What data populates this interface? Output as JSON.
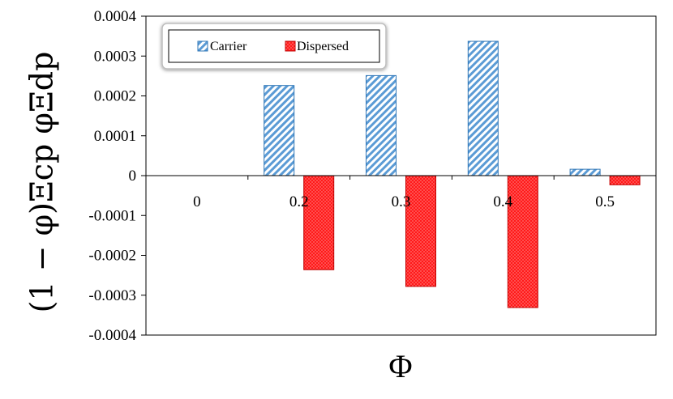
{
  "chart_data": {
    "type": "bar",
    "categories": [
      "0",
      "0.2",
      "0.3",
      "0.4",
      "0.5"
    ],
    "series": [
      {
        "name": "Carrier",
        "values": [
          0,
          0.000226,
          0.000251,
          0.000337,
          1.6e-05
        ],
        "color": "#5b9bd5",
        "pattern": "diagonal-hatch"
      },
      {
        "name": "Dispersed",
        "values": [
          0,
          -0.000236,
          -0.000278,
          -0.000331,
          -2.3e-05
        ],
        "color": "#ff0000",
        "pattern": "dotted"
      }
    ],
    "xlabel": "Φ",
    "ylabel": "(1 − φ)Ξcp   φΞdp",
    "ylim": [
      -0.0004,
      0.0004
    ],
    "yticks": [
      "0.0004",
      "0.0003",
      "0.0002",
      "0.0001",
      "0",
      "-0.0001",
      "-0.0002",
      "-0.0003",
      "-0.0004"
    ],
    "legend_position": "top-left",
    "grid": false
  }
}
